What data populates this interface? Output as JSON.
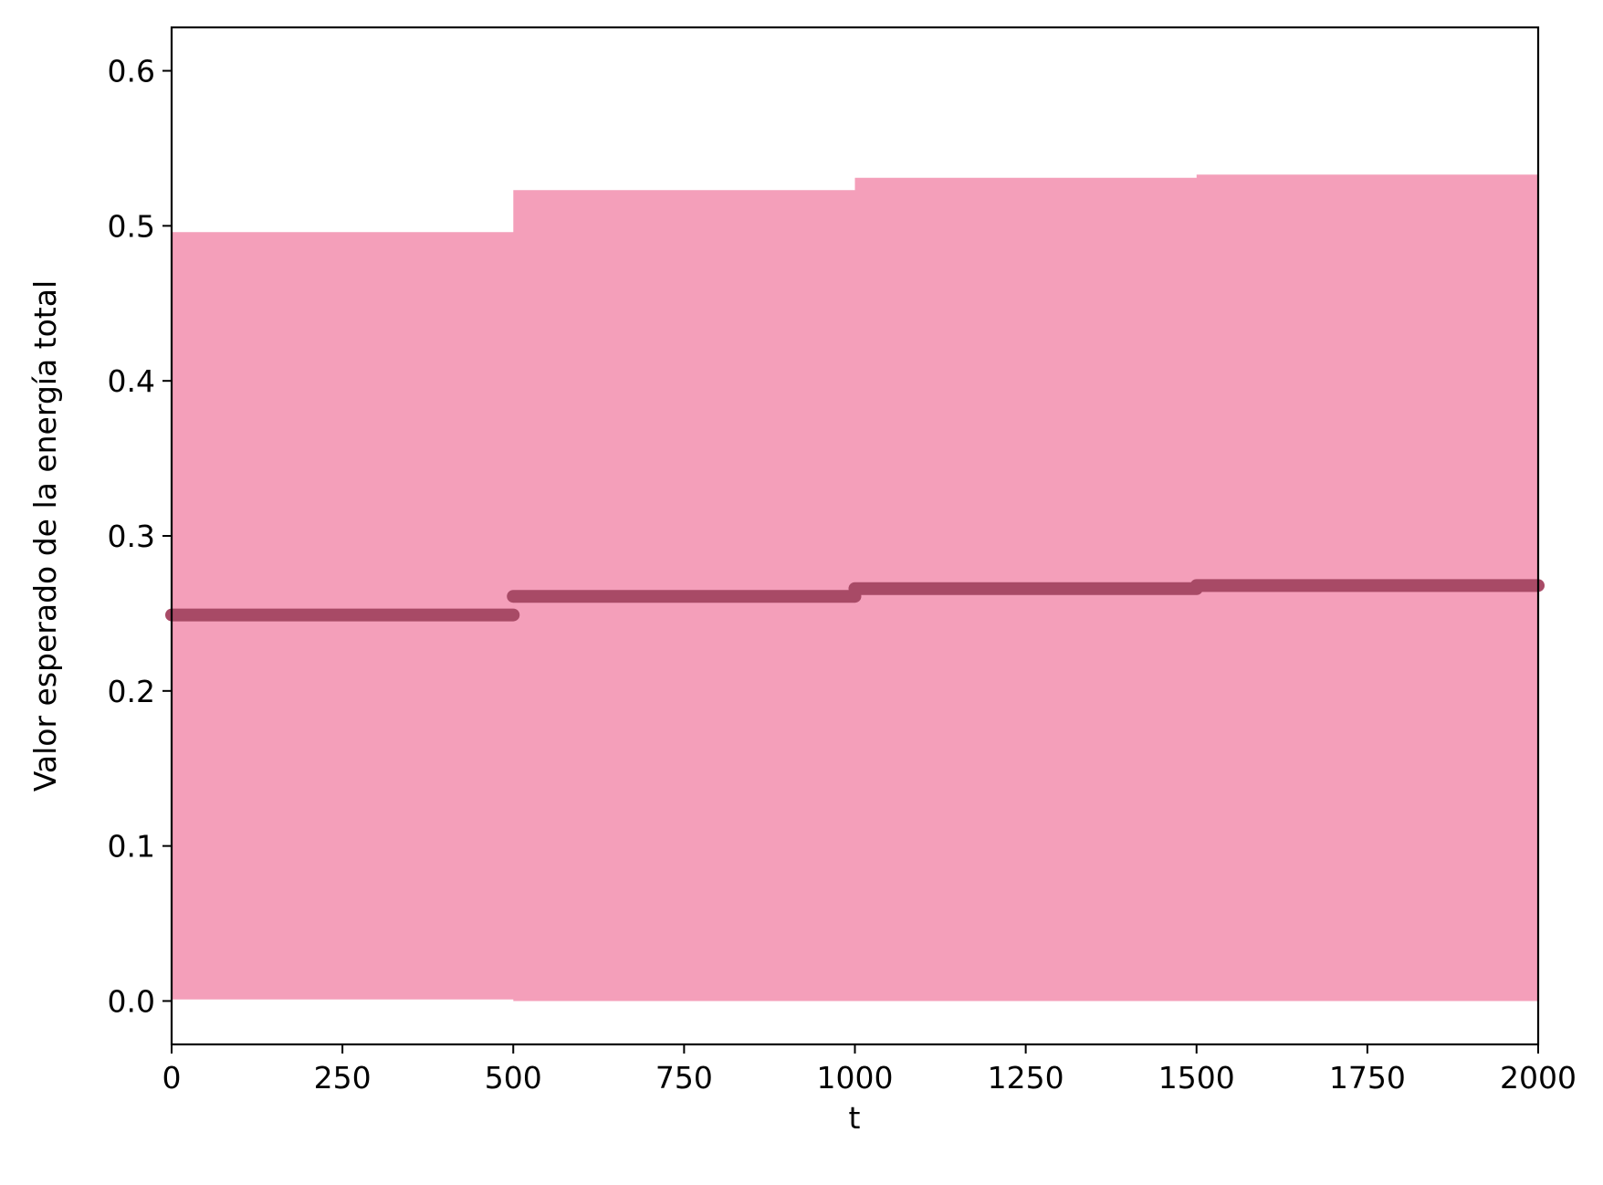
{
  "chart_data": {
    "type": "area",
    "title": "",
    "xlabel": "t",
    "ylabel": "Valor esperado de la energía total",
    "xlim": [
      0,
      2000
    ],
    "ylim": [
      -0.028,
      0.628
    ],
    "xticks": [
      0,
      250,
      500,
      750,
      1000,
      1250,
      1500,
      1750,
      2000
    ],
    "xtick_labels": [
      "0",
      "250",
      "500",
      "750",
      "1000",
      "1250",
      "1500",
      "1750",
      "2000"
    ],
    "yticks": [
      0.0,
      0.1,
      0.2,
      0.3,
      0.4,
      0.5,
      0.6
    ],
    "ytick_labels": [
      "0.0",
      "0.1",
      "0.2",
      "0.3",
      "0.4",
      "0.5",
      "0.6"
    ],
    "grid": false,
    "legend": "none",
    "colors": {
      "band": "#f49fba",
      "mean_line": "#a84a66",
      "axes": "#000000"
    },
    "band": {
      "x": [
        0,
        500,
        500,
        1000,
        1000,
        1500,
        1500,
        2000
      ],
      "upper": [
        0.496,
        0.496,
        0.523,
        0.523,
        0.531,
        0.531,
        0.533,
        0.533
      ],
      "lower": [
        0.001,
        0.001,
        0.0,
        0.0,
        0.0,
        0.0,
        0.0,
        0.0
      ]
    },
    "series": [
      {
        "segments": [
          {
            "x": [
              0,
              500
            ],
            "y": [
              0.249,
              0.249
            ]
          },
          {
            "x": [
              500,
              1000
            ],
            "y": [
              0.261,
              0.261
            ]
          },
          {
            "x": [
              1000,
              1500
            ],
            "y": [
              0.266,
              0.266
            ]
          },
          {
            "x": [
              1500,
              2000
            ],
            "y": [
              0.268,
              0.268
            ]
          }
        ]
      }
    ]
  }
}
